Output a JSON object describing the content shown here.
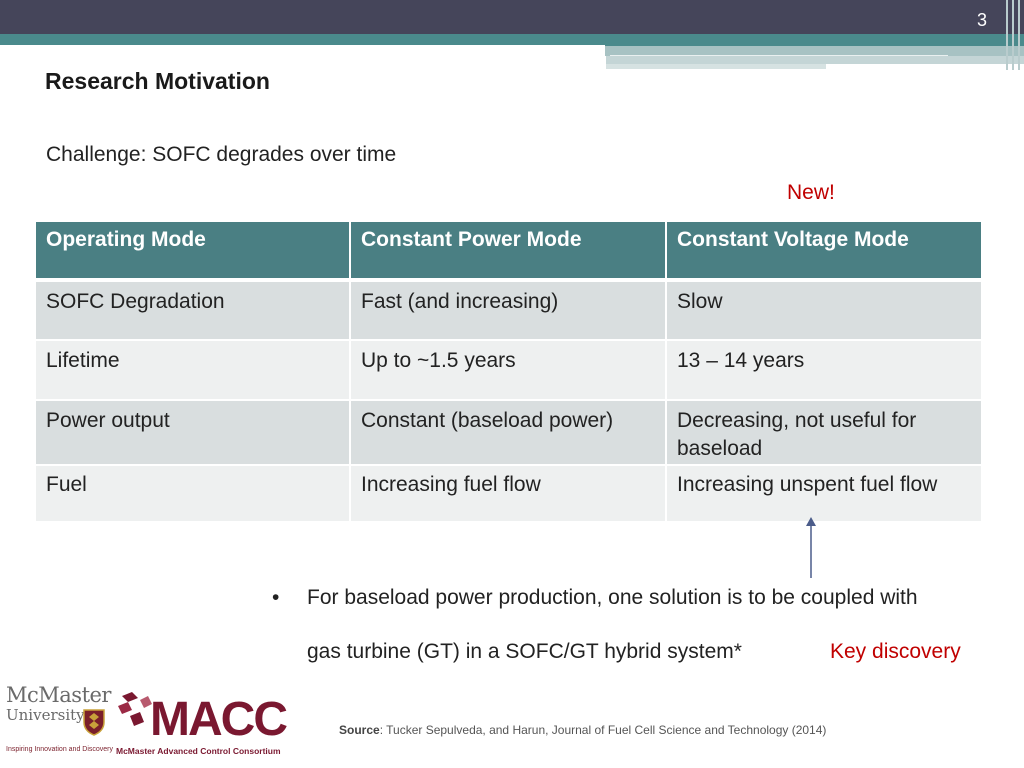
{
  "slide_number": "3",
  "title": "Research Motivation",
  "challenge": "Challenge: SOFC degrades over time",
  "new_label": "New!",
  "table": {
    "headers": [
      "Operating Mode",
      "Constant Power Mode",
      "Constant Voltage Mode"
    ],
    "rows": [
      [
        "SOFC Degradation",
        "Fast (and increasing)",
        "Slow"
      ],
      [
        "Lifetime",
        "Up to ~1.5 years",
        "13 – 14 years"
      ],
      [
        "Power output",
        "Constant (baseload power)",
        "Decreasing, not useful for baseload"
      ],
      [
        "Fuel",
        "Increasing fuel flow",
        "Increasing unspent fuel flow"
      ]
    ]
  },
  "bullet": {
    "marker": "•",
    "line1": "For baseload power production, one solution is to be coupled with",
    "line2": "gas turbine (GT) in a SOFC/GT hybrid system*"
  },
  "key_discovery": "Key discovery",
  "source": {
    "label": "Source",
    "text": ": Tucker Sepulveda, and Harun, Journal of Fuel Cell Science and Technology (2014)"
  },
  "logos": {
    "mcmaster_name": "McMaster",
    "mcmaster_university": "University",
    "mcmaster_tagline": "Inspiring Innovation and Discovery",
    "macc_word": "MACC",
    "macc_sub": "McMaster Advanced Control Consortium"
  },
  "colors": {
    "header_teal": "#4a7f83",
    "accent_red": "#c00000",
    "macc_maroon": "#7a1830",
    "arrow": "#4b5c8a"
  }
}
